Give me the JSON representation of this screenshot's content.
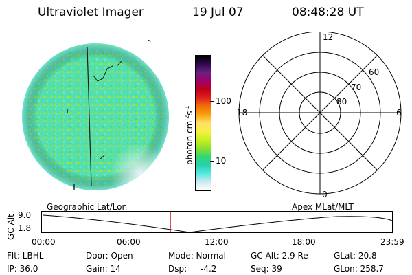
{
  "header": {
    "instrument": "Ultraviolet Imager",
    "date": "19 Jul 07",
    "time": "08:48:28 UT"
  },
  "colorbar": {
    "label": "photon cm",
    "label_sup1": "-2",
    "label_mid": "s",
    "label_sup2": "-1",
    "tick_100": "100",
    "tick_10": "10",
    "colors": [
      "#ffffff",
      "#cfe9ee",
      "#56e8e0",
      "#28d0b0",
      "#30d870",
      "#8ce030",
      "#c8f020",
      "#f4f040",
      "#ffe06a",
      "#f8a010",
      "#f07008",
      "#e02020",
      "#c00018",
      "#a0006a",
      "#6a2080",
      "#2e0a50",
      "#000000"
    ]
  },
  "polar": {
    "mlt_12": "12",
    "mlt_18": "18",
    "mlt_6": "6",
    "mlt_0": "0",
    "lat_60": "60",
    "lat_70": "70",
    "lat_80": "80"
  },
  "timeline": {
    "left_label": "Geographic Lat/Lon",
    "right_label": "Apex MLat/MLT",
    "axis_label": "GC Alt",
    "y_top": "9.0",
    "y_bottom": "1.8",
    "ticks": [
      "00:00",
      "06:00",
      "12:00",
      "18:00",
      "23:59"
    ],
    "marker_time_fraction": 0.367,
    "marker_color": "#c00000"
  },
  "info": {
    "flt": "Flt: LBHL",
    "ip": "IP: 36.0",
    "door": "Door: Open",
    "gain": "Gain: 14",
    "mode": "Mode: Normal",
    "dsp_label": "Dsp:",
    "dsp_value": "-4.2",
    "gcalt": "GC Alt: 2.9 Re",
    "seq": "Seq: 39",
    "glat": "GLat: 20.8",
    "glon": "GLon: 258.7"
  }
}
